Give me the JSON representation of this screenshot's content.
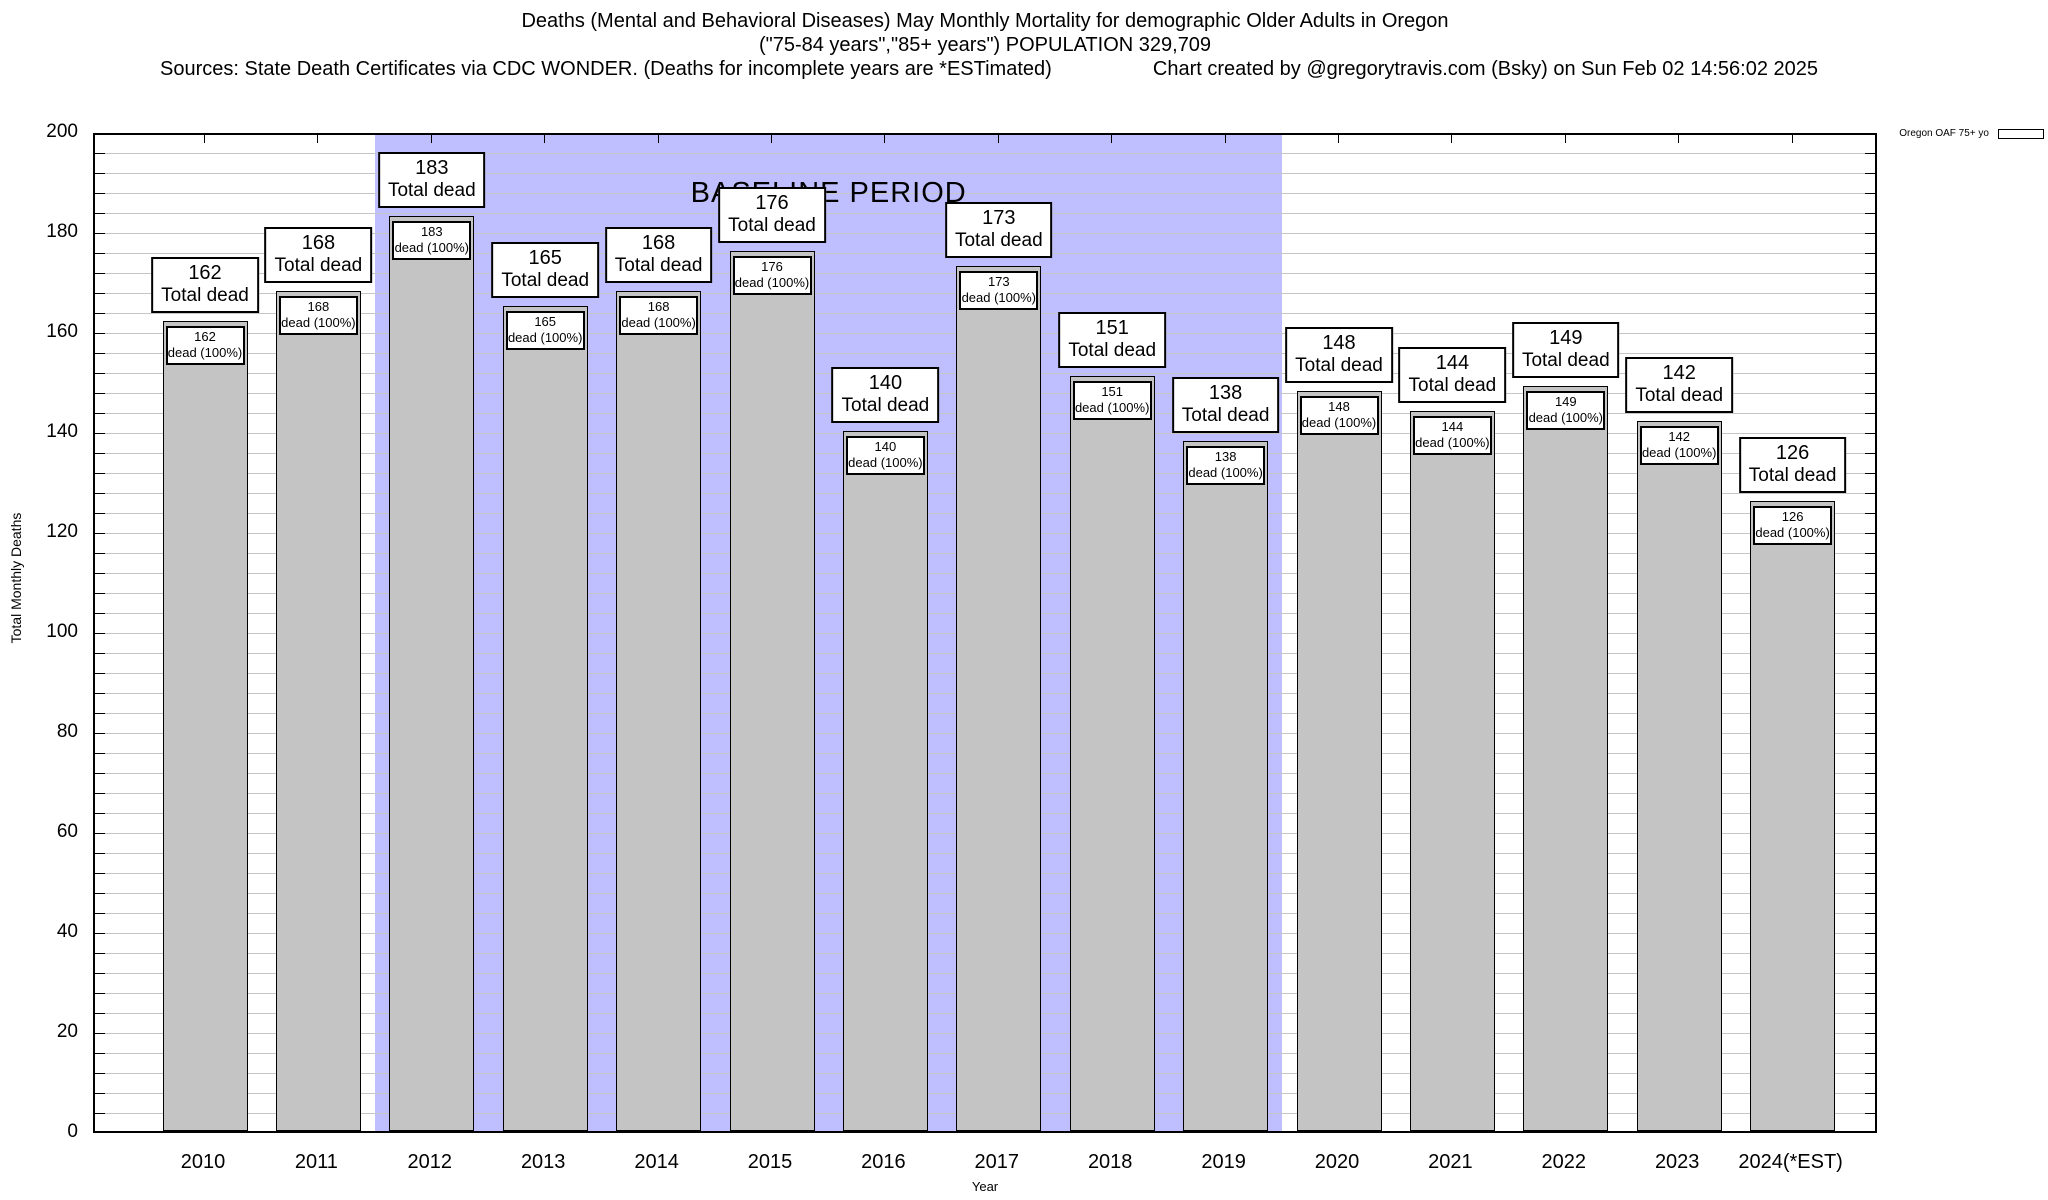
{
  "header": {
    "title_line1": "Deaths (Mental and Behavioral Diseases) May Monthly Mortality for demographic Older Adults in Oregon",
    "title_line2": "(\"75-84 years\",\"85+ years\") POPULATION 329,709",
    "sources_note": "Sources: State Death Certificates via CDC WONDER. (Deaths for incomplete years are *ESTimated)",
    "credit": "Chart created by @gregorytravis.com (Bsky) on Sun Feb 02 14:56:02 2025"
  },
  "legend": {
    "label": "Oregon OAF 75+ yo",
    "swatch_color": "#c4c4c4",
    "position": "top-right-outside"
  },
  "chart_data": {
    "type": "bar",
    "title": "Deaths (Mental and Behavioral Diseases) May Monthly Mortality for demographic Older Adults in Oregon",
    "subtitle": "(\"75-84 years\",\"85+ years\") POPULATION 329,709",
    "categories": [
      "2010",
      "2011",
      "2012",
      "2013",
      "2014",
      "2015",
      "2016",
      "2017",
      "2018",
      "2019",
      "2020",
      "2021",
      "2022",
      "2023",
      "2024(*EST)"
    ],
    "values": [
      162,
      168,
      183,
      165,
      168,
      176,
      140,
      173,
      151,
      138,
      148,
      144,
      149,
      142,
      126
    ],
    "series_name": "Oregon OAF 75+ yo",
    "bar_total_label": "Total dead",
    "bar_sub_label": "dead (100%)",
    "xlabel": "Year",
    "ylabel": "Total Monthly Deaths",
    "ylim": [
      0,
      200
    ],
    "yticks": [
      0,
      20,
      40,
      60,
      80,
      100,
      120,
      140,
      160,
      180,
      200
    ],
    "minor_grid_step": 4,
    "grid": true,
    "bar_color": "#c4c4c4",
    "baseline_region": {
      "label": "BASELINE PERIOD",
      "from_category": "2012",
      "to_category": "2019",
      "from_index": 2,
      "to_index": 9,
      "color": "#bfbfff"
    }
  }
}
